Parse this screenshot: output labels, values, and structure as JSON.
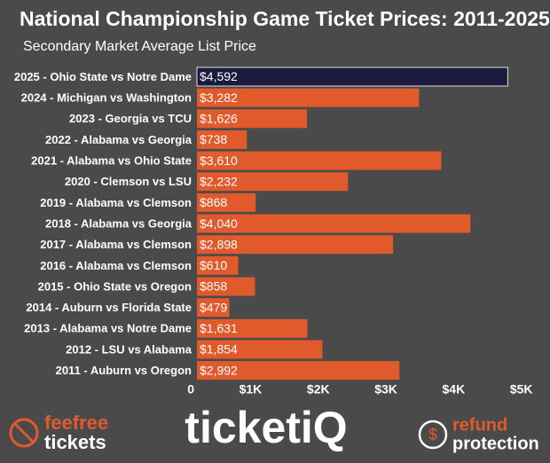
{
  "chart_data": {
    "type": "barh",
    "title": "National Championship Game Ticket Prices: 2011-2025",
    "subtitle": "Secondary Market Average List Price",
    "categories": [
      "2025 - Ohio State vs Notre Dame",
      "2024 - Michigan vs Washington",
      "2023 - Georgia vs TCU",
      "2022 - Alabama vs Georgia",
      "2021 - Alabama vs Ohio State",
      "2020 - Clemson vs LSU",
      "2019 - Alabama vs Clemson",
      "2018 - Alabama vs Georgia",
      "2017 - Alabama vs Clemson",
      "2016 - Alabama vs Clemson",
      "2015 - Ohio State vs Oregon",
      "2014 - Auburn vs Florida State",
      "2013 - Alabama vs Notre Dame",
      "2012 - LSU vs Alabama",
      "2011 - Auburn vs Oregon"
    ],
    "values": [
      4592,
      3282,
      1626,
      738,
      3610,
      2232,
      868,
      4040,
      2898,
      610,
      858,
      479,
      1631,
      1854,
      2992
    ],
    "value_labels": [
      "$4,592",
      "$3,282",
      "$1,626",
      "$738",
      "$3,610",
      "$2,232",
      "$868",
      "$4,040",
      "$2,898",
      "$610",
      "$858",
      "$479",
      "$1,631",
      "$1,854",
      "$2,992"
    ],
    "colors": [
      "#1b1a3c",
      "#e05a2c",
      "#e05a2c",
      "#e05a2c",
      "#e05a2c",
      "#e05a2c",
      "#e05a2c",
      "#e05a2c",
      "#e05a2c",
      "#e05a2c",
      "#e05a2c",
      "#e05a2c",
      "#e05a2c",
      "#e05a2c",
      "#e05a2c"
    ],
    "xlim": [
      0,
      5200
    ],
    "xticks": [
      0,
      {
        "value": 1000,
        "label": "$1K"
      },
      {
        "value": 2000,
        "label": "$2K"
      },
      {
        "value": 3000,
        "label": "$3K"
      },
      {
        "value": 4000,
        "label": "$4K"
      },
      {
        "value": 5000,
        "label": "$5K"
      }
    ],
    "grid": false
  },
  "footer": {
    "left_top": "feefree",
    "left_bottom": "tickets",
    "center": "ticketiQ",
    "right_top": "refund",
    "right_bottom": "protection"
  }
}
